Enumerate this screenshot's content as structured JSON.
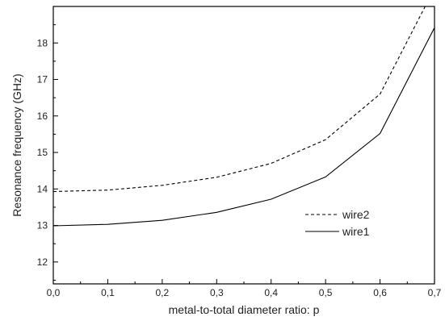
{
  "chart_data": {
    "type": "line",
    "xlabel": "metal-to-total diameter ratio: p",
    "ylabel": "Resonance frequency (GHz)",
    "xlim": [
      0.0,
      0.7
    ],
    "ylim": [
      11.4,
      19.0
    ],
    "x_ticks": [
      "0,0",
      "0,1",
      "0,2",
      "0,3",
      "0,4",
      "0,5",
      "0,6",
      "0,7"
    ],
    "y_ticks": [
      "12",
      "13",
      "14",
      "15",
      "16",
      "17",
      "18"
    ],
    "grid": false,
    "legend_position": "lower-right",
    "series": [
      {
        "name": "wire2",
        "style": "dashed",
        "color": "#000000",
        "x": [
          0.0,
          0.1,
          0.2,
          0.3,
          0.4,
          0.5,
          0.6,
          0.7
        ],
        "y": [
          13.93,
          13.97,
          14.1,
          14.32,
          14.7,
          15.35,
          16.6,
          19.5
        ]
      },
      {
        "name": "wire1",
        "style": "solid",
        "color": "#000000",
        "x": [
          0.0,
          0.1,
          0.2,
          0.3,
          0.4,
          0.5,
          0.6,
          0.7
        ],
        "y": [
          12.99,
          13.03,
          13.14,
          13.36,
          13.72,
          14.33,
          15.52,
          18.42
        ]
      }
    ]
  }
}
